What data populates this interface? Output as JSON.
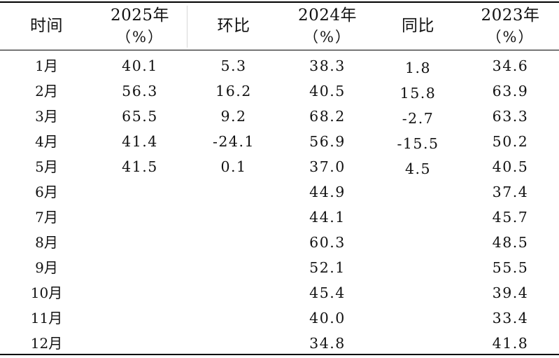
{
  "table": {
    "headers": {
      "month": "时间",
      "y2025": {
        "title": "2025年",
        "unit": "（%）"
      },
      "mom": "环比",
      "y2024": {
        "title": "2024年",
        "unit": "（%）"
      },
      "yoy": "同比",
      "y2023": {
        "title": "2023年",
        "unit": "（%）"
      }
    },
    "rows": [
      {
        "month": "1月",
        "y2025": "40.1",
        "mom": "5.3",
        "y2024": "38.3",
        "yoy": "1.8",
        "y2023": "34.6"
      },
      {
        "month": "2月",
        "y2025": "56.3",
        "mom": "16.2",
        "y2024": "40.5",
        "yoy": "15.8",
        "y2023": "63.9"
      },
      {
        "month": "3月",
        "y2025": "65.5",
        "mom": "9.2",
        "y2024": "68.2",
        "yoy": "-2.7",
        "y2023": "63.3"
      },
      {
        "month": "4月",
        "y2025": "41.4",
        "mom": "-24.1",
        "y2024": "56.9",
        "yoy": "-15.5",
        "y2023": "50.2"
      },
      {
        "month": "5月",
        "y2025": "41.5",
        "mom": "0.1",
        "y2024": "37.0",
        "yoy": "4.5",
        "y2023": "40.5"
      },
      {
        "month": "6月",
        "y2025": "",
        "mom": "",
        "y2024": "44.9",
        "yoy": "",
        "y2023": "37.4"
      },
      {
        "month": "7月",
        "y2025": "",
        "mom": "",
        "y2024": "44.1",
        "yoy": "",
        "y2023": "45.7"
      },
      {
        "month": "8月",
        "y2025": "",
        "mom": "",
        "y2024": "60.3",
        "yoy": "",
        "y2023": "48.5"
      },
      {
        "month": "9月",
        "y2025": "",
        "mom": "",
        "y2024": "52.1",
        "yoy": "",
        "y2023": "55.5"
      },
      {
        "month": "10月",
        "y2025": "",
        "mom": "",
        "y2024": "45.4",
        "yoy": "",
        "y2023": "39.4"
      },
      {
        "month": "11月",
        "y2025": "",
        "mom": "",
        "y2024": "40.0",
        "yoy": "",
        "y2023": "33.4"
      },
      {
        "month": "12月",
        "y2025": "",
        "mom": "",
        "y2024": "34.8",
        "yoy": "",
        "y2023": "41.8"
      }
    ]
  }
}
